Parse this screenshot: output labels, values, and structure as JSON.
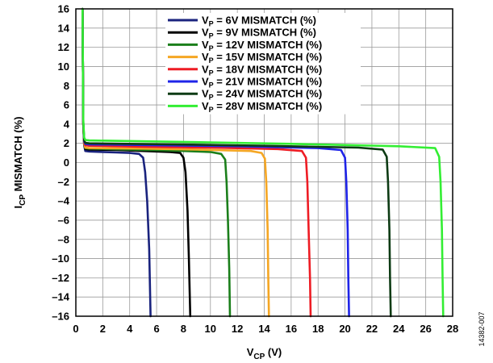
{
  "chart_data": {
    "type": "line",
    "xlabel": {
      "main": "V",
      "sub": "CP",
      "unit": " (V)"
    },
    "ylabel": {
      "main": "I",
      "sub": "CP",
      "unit": " MISMATCH (%)"
    },
    "xlim": [
      0,
      28
    ],
    "ylim": [
      -16,
      16
    ],
    "xticks": [
      0,
      2,
      4,
      6,
      8,
      10,
      12,
      14,
      16,
      18,
      20,
      22,
      24,
      26,
      28
    ],
    "yticks": [
      16,
      14,
      12,
      10,
      8,
      6,
      4,
      2,
      0,
      -2,
      -4,
      -6,
      -8,
      -10,
      -12,
      -14,
      -16
    ],
    "ytick_labels": [
      "16",
      "14",
      "12",
      "10",
      "8",
      "6",
      "4",
      "2",
      "0",
      "–2",
      "–4",
      "–6",
      "–8",
      "–10",
      "–12",
      "–14",
      "–16"
    ],
    "grid": true,
    "legend_position": "top-center",
    "series": [
      {
        "name_main": "V",
        "name_sub": "P",
        "name_rest": " = 6V MISMATCH (%)",
        "color": "#1a237e",
        "points": [
          [
            0.5,
            16
          ],
          [
            0.55,
            4.0
          ],
          [
            0.62,
            1.8
          ],
          [
            0.7,
            1.2
          ],
          [
            1.0,
            1.15
          ],
          [
            2.0,
            1.1
          ],
          [
            3.0,
            1.05
          ],
          [
            4.0,
            1.0
          ],
          [
            4.7,
            0.9
          ],
          [
            5.0,
            0.5
          ],
          [
            5.15,
            -1
          ],
          [
            5.3,
            -4
          ],
          [
            5.45,
            -9
          ],
          [
            5.55,
            -16
          ]
        ]
      },
      {
        "name_main": "V",
        "name_sub": "P",
        "name_rest": " = 9V MISMATCH (%)",
        "color": "#000000",
        "points": [
          [
            0.5,
            16
          ],
          [
            0.55,
            4.0
          ],
          [
            0.62,
            2.0
          ],
          [
            0.7,
            1.4
          ],
          [
            1.0,
            1.35
          ],
          [
            3.0,
            1.3
          ],
          [
            5.0,
            1.2
          ],
          [
            7.0,
            1.1
          ],
          [
            7.75,
            1.0
          ],
          [
            8.0,
            0.5
          ],
          [
            8.15,
            -1
          ],
          [
            8.3,
            -5
          ],
          [
            8.4,
            -10
          ],
          [
            8.5,
            -16
          ]
        ]
      },
      {
        "name_main": "V",
        "name_sub": "P",
        "name_rest": " = 12V MISMATCH (%)",
        "color": "#1b7f1b",
        "points": [
          [
            0.5,
            16
          ],
          [
            0.55,
            4.0
          ],
          [
            0.62,
            2.0
          ],
          [
            0.7,
            1.5
          ],
          [
            1.0,
            1.45
          ],
          [
            4.0,
            1.35
          ],
          [
            7.0,
            1.25
          ],
          [
            10.0,
            1.1
          ],
          [
            10.8,
            0.9
          ],
          [
            11.1,
            0.3
          ],
          [
            11.2,
            -2
          ],
          [
            11.3,
            -6
          ],
          [
            11.4,
            -11
          ],
          [
            11.45,
            -16
          ]
        ]
      },
      {
        "name_main": "V",
        "name_sub": "P",
        "name_rest": " = 15V MISMATCH (%)",
        "color": "#f5a623",
        "points": [
          [
            0.5,
            16
          ],
          [
            0.55,
            4.0
          ],
          [
            0.62,
            2.0
          ],
          [
            0.7,
            1.55
          ],
          [
            1.0,
            1.5
          ],
          [
            5.0,
            1.45
          ],
          [
            9.0,
            1.35
          ],
          [
            13.0,
            1.2
          ],
          [
            13.8,
            1.0
          ],
          [
            14.05,
            0.4
          ],
          [
            14.15,
            -2
          ],
          [
            14.25,
            -7
          ],
          [
            14.3,
            -12
          ],
          [
            14.35,
            -16
          ]
        ]
      },
      {
        "name_main": "V",
        "name_sub": "P",
        "name_rest": " = 18V MISMATCH (%)",
        "color": "#ee1c24",
        "points": [
          [
            0.5,
            16
          ],
          [
            0.55,
            4.0
          ],
          [
            0.62,
            2.1
          ],
          [
            0.7,
            1.8
          ],
          [
            1.0,
            1.75
          ],
          [
            5.0,
            1.65
          ],
          [
            10.0,
            1.55
          ],
          [
            15.0,
            1.4
          ],
          [
            16.8,
            1.2
          ],
          [
            17.1,
            0.5
          ],
          [
            17.2,
            -2
          ],
          [
            17.3,
            -7
          ],
          [
            17.4,
            -12
          ],
          [
            17.45,
            -16
          ]
        ]
      },
      {
        "name_main": "V",
        "name_sub": "P",
        "name_rest": " = 21V MISMATCH (%)",
        "color": "#1f24e8",
        "points": [
          [
            0.5,
            16
          ],
          [
            0.55,
            4.2
          ],
          [
            0.62,
            2.2
          ],
          [
            0.7,
            1.95
          ],
          [
            1.0,
            1.9
          ],
          [
            6.0,
            1.8
          ],
          [
            12.0,
            1.7
          ],
          [
            18.0,
            1.5
          ],
          [
            19.7,
            1.3
          ],
          [
            20.0,
            0.5
          ],
          [
            20.1,
            -2
          ],
          [
            20.2,
            -7
          ],
          [
            20.25,
            -12
          ],
          [
            20.3,
            -16
          ]
        ]
      },
      {
        "name_main": "V",
        "name_sub": "P",
        "name_rest": " = 24V MISMATCH (%)",
        "color": "#0d3b14",
        "points": [
          [
            0.5,
            16
          ],
          [
            0.55,
            4.2
          ],
          [
            0.62,
            2.3
          ],
          [
            0.7,
            2.05
          ],
          [
            1.0,
            2.0
          ],
          [
            7.0,
            1.9
          ],
          [
            14.0,
            1.75
          ],
          [
            21.0,
            1.55
          ],
          [
            22.8,
            1.35
          ],
          [
            23.1,
            0.6
          ],
          [
            23.2,
            -2
          ],
          [
            23.3,
            -7
          ],
          [
            23.35,
            -12
          ],
          [
            23.4,
            -16
          ]
        ]
      },
      {
        "name_main": "V",
        "name_sub": "P",
        "name_rest": " = 28V MISMATCH (%)",
        "color": "#33ee33",
        "points": [
          [
            0.5,
            16
          ],
          [
            0.55,
            4.5
          ],
          [
            0.62,
            2.6
          ],
          [
            0.7,
            2.35
          ],
          [
            1.0,
            2.3
          ],
          [
            8.0,
            2.15
          ],
          [
            16.0,
            1.95
          ],
          [
            24.0,
            1.7
          ],
          [
            26.7,
            1.5
          ],
          [
            27.0,
            0.6
          ],
          [
            27.1,
            -2
          ],
          [
            27.2,
            -7
          ],
          [
            27.25,
            -12
          ],
          [
            27.3,
            -16
          ]
        ]
      }
    ],
    "figure_number": "14382-007"
  }
}
